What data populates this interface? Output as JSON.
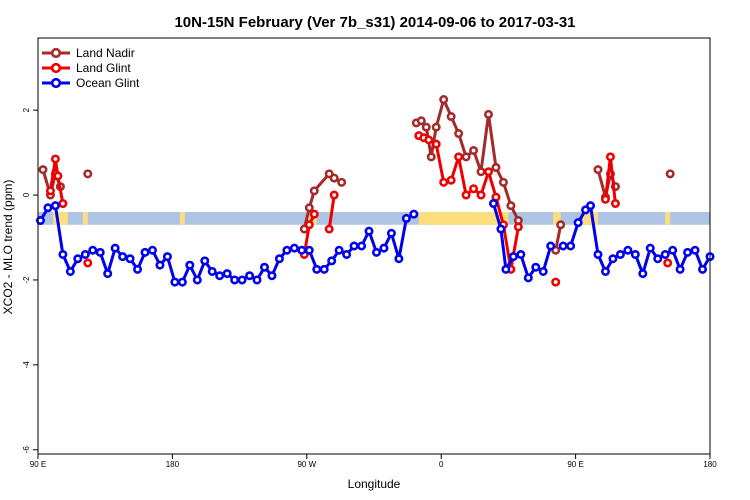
{
  "chart_data": {
    "type": "line",
    "title": "10N-15N February (Ver 7b_s31)   2014-09-06 to 2017-03-31",
    "xlabel": "Longitude",
    "ylabel": "XCO2 - MLO trend (ppm)",
    "xlim": [
      -90,
      180
    ],
    "ylim": [
      -6.1,
      3.7
    ],
    "x_ticks": [
      {
        "x": -90,
        "label": "90 E"
      },
      {
        "x": -36,
        "label": "180"
      },
      {
        "x": 18,
        "label": "90 W"
      },
      {
        "x": 72,
        "label": "0"
      },
      {
        "x": 126,
        "label": "90 E"
      },
      {
        "x": 180,
        "label": "180"
      }
    ],
    "y_ticks": [
      -6,
      -4,
      -2,
      0,
      2
    ],
    "legend_position": "top-left",
    "band": {
      "y_range": [
        -0.7,
        -0.4
      ],
      "colors": {
        "water": "#aec4e5",
        "land": "#fbde7e"
      },
      "land_segments": [
        [
          -84,
          -78
        ],
        [
          -72,
          -70
        ],
        [
          -33,
          -31
        ],
        [
          18,
          22
        ],
        [
          63,
          99
        ],
        [
          117,
          120
        ],
        [
          129,
          135
        ],
        [
          162,
          164
        ]
      ]
    },
    "series": [
      {
        "name": "Land Nadir",
        "color": "#a52a2a",
        "segments": [
          [
            [
              -88,
              0.6
            ],
            [
              -85,
              0.0
            ],
            [
              -83,
              0.5
            ],
            [
              -81,
              0.2
            ]
          ],
          [
            [
              -70,
              0.5
            ]
          ],
          [
            [
              17,
              -0.8
            ],
            [
              19,
              -0.3
            ],
            [
              21,
              0.1
            ],
            [
              27,
              0.5
            ],
            [
              29,
              0.4
            ],
            [
              32,
              0.3
            ]
          ],
          [
            [
              62,
              1.7
            ],
            [
              64,
              1.75
            ],
            [
              66,
              1.6
            ],
            [
              68,
              0.9
            ],
            [
              70,
              1.6
            ],
            [
              73,
              2.25
            ],
            [
              76,
              1.85
            ],
            [
              79,
              1.45
            ],
            [
              82,
              0.9
            ],
            [
              85,
              1.05
            ],
            [
              88,
              0.55
            ],
            [
              91,
              1.9
            ],
            [
              94,
              0.65
            ],
            [
              97,
              0.3
            ],
            [
              100,
              -0.25
            ],
            [
              103,
              -0.6
            ]
          ],
          [
            [
              118,
              -1.3
            ],
            [
              120,
              -0.7
            ]
          ],
          [
            [
              135,
              0.6
            ],
            [
              138,
              -0.05
            ],
            [
              140,
              0.5
            ],
            [
              142,
              0.2
            ]
          ],
          [
            [
              164,
              0.5
            ]
          ]
        ]
      },
      {
        "name": "Land Glint",
        "color": "#ee0000",
        "segments": [
          [
            [
              -85,
              0.1
            ],
            [
              -83,
              0.85
            ],
            [
              -82,
              0.45
            ],
            [
              -80,
              -0.2
            ]
          ],
          [
            [
              -70,
              -1.6
            ]
          ],
          [
            [
              17,
              -1.4
            ],
            [
              19,
              -0.7
            ],
            [
              21,
              -0.45
            ]
          ],
          [
            [
              27,
              -0.8
            ],
            [
              29,
              0.0
            ]
          ],
          [
            [
              63,
              1.4
            ],
            [
              65,
              1.35
            ],
            [
              67,
              1.3
            ],
            [
              70,
              1.2
            ],
            [
              73,
              0.3
            ],
            [
              76,
              0.35
            ],
            [
              79,
              0.9
            ],
            [
              82,
              0.0
            ],
            [
              85,
              0.15
            ],
            [
              88,
              0.0
            ],
            [
              91,
              0.55
            ],
            [
              94,
              -0.05
            ],
            [
              97,
              -0.7
            ],
            [
              100,
              -1.75
            ],
            [
              103,
              -0.75
            ]
          ],
          [
            [
              118,
              -2.05
            ]
          ],
          [
            [
              138,
              -0.1
            ],
            [
              140,
              0.9
            ],
            [
              142,
              -0.2
            ]
          ],
          [
            [
              163,
              -1.6
            ]
          ]
        ]
      },
      {
        "name": "Ocean Glint",
        "color": "#0000ee",
        "segments": [
          [
            [
              -89,
              -0.6
            ],
            [
              -86,
              -0.3
            ],
            [
              -83,
              -0.25
            ],
            [
              -80,
              -1.4
            ],
            [
              -77,
              -1.8
            ],
            [
              -74,
              -1.5
            ],
            [
              -71,
              -1.4
            ],
            [
              -68,
              -1.3
            ],
            [
              -65,
              -1.35
            ],
            [
              -62,
              -1.85
            ],
            [
              -59,
              -1.25
            ],
            [
              -56,
              -1.45
            ],
            [
              -53,
              -1.5
            ],
            [
              -50,
              -1.75
            ],
            [
              -47,
              -1.35
            ],
            [
              -44,
              -1.3
            ],
            [
              -41,
              -1.65
            ],
            [
              -38,
              -1.45
            ],
            [
              -35,
              -2.05
            ],
            [
              -32,
              -2.05
            ],
            [
              -29,
              -1.65
            ],
            [
              -26,
              -2.0
            ],
            [
              -23,
              -1.55
            ],
            [
              -20,
              -1.8
            ],
            [
              -17,
              -1.9
            ],
            [
              -14,
              -1.85
            ],
            [
              -11,
              -2.0
            ],
            [
              -8,
              -2.0
            ],
            [
              -5,
              -1.9
            ],
            [
              -2,
              -2.0
            ],
            [
              1,
              -1.7
            ],
            [
              4,
              -1.9
            ],
            [
              7,
              -1.5
            ],
            [
              10,
              -1.3
            ],
            [
              13,
              -1.25
            ],
            [
              16,
              -1.3
            ],
            [
              19,
              -1.3
            ],
            [
              22,
              -1.75
            ],
            [
              25,
              -1.75
            ],
            [
              28,
              -1.55
            ],
            [
              31,
              -1.3
            ],
            [
              34,
              -1.4
            ],
            [
              37,
              -1.2
            ],
            [
              40,
              -1.2
            ],
            [
              43,
              -0.85
            ],
            [
              46,
              -1.35
            ],
            [
              49,
              -1.25
            ],
            [
              52,
              -0.9
            ],
            [
              55,
              -1.5
            ],
            [
              58,
              -0.55
            ],
            [
              61,
              -0.45
            ]
          ],
          [
            [
              93,
              -0.2
            ],
            [
              96,
              -0.8
            ],
            [
              98,
              -1.75
            ],
            [
              101,
              -1.45
            ],
            [
              104,
              -1.4
            ],
            [
              107,
              -1.95
            ],
            [
              110,
              -1.7
            ],
            [
              113,
              -1.8
            ],
            [
              116,
              -1.2
            ]
          ],
          [
            [
              121,
              -1.2
            ],
            [
              124,
              -1.2
            ],
            [
              127,
              -0.65
            ],
            [
              130,
              -0.35
            ],
            [
              132,
              -0.25
            ],
            [
              135,
              -1.4
            ],
            [
              138,
              -1.8
            ],
            [
              141,
              -1.5
            ],
            [
              144,
              -1.4
            ],
            [
              147,
              -1.3
            ],
            [
              150,
              -1.4
            ],
            [
              153,
              -1.85
            ],
            [
              156,
              -1.25
            ],
            [
              159,
              -1.5
            ],
            [
              162,
              -1.4
            ],
            [
              165,
              -1.3
            ],
            [
              168,
              -1.75
            ],
            [
              171,
              -1.35
            ],
            [
              174,
              -1.3
            ],
            [
              177,
              -1.75
            ],
            [
              180,
              -1.45
            ]
          ]
        ]
      }
    ]
  }
}
